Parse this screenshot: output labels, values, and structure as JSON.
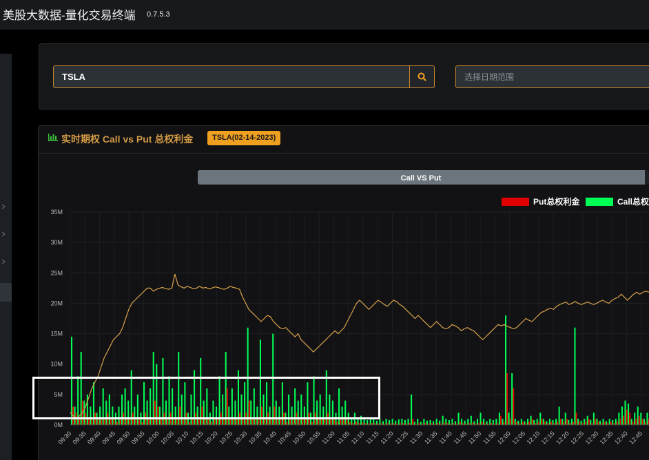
{
  "app": {
    "title": "美股大数据-量化交易终端",
    "version": "0.7.5.3"
  },
  "search": {
    "ticker_value": "TSLA",
    "date_placeholder": "选择日期范围"
  },
  "card": {
    "title": "实时期权 Call vs Put 总权利金",
    "badge": "TSLA(02-14-2023)"
  },
  "chart_data": {
    "type": "bar",
    "title": "Call VS Put",
    "legend": [
      "Put总权利金",
      "Call总权"
    ],
    "legend_position": "top-right",
    "colors": {
      "put": "#e00000",
      "call": "#00ff55",
      "price_line": "#d8a24a"
    },
    "y_ticks": [
      "0M",
      "5M",
      "10M",
      "15M",
      "20M",
      "25M",
      "30M",
      "35M"
    ],
    "ylim": [
      0,
      35
    ],
    "x_ticks": [
      "09:30",
      "09:35",
      "09:40",
      "09:45",
      "09:50",
      "09:55",
      "10:00",
      "10:05",
      "10:10",
      "10:15",
      "10:20",
      "10:25",
      "10:30",
      "10:35",
      "10:40",
      "10:45",
      "10:50",
      "10:55",
      "11:00",
      "11:05",
      "11:10",
      "11:15",
      "11:20",
      "11:25",
      "11:30",
      "11:35",
      "11:40",
      "11:45",
      "11:50",
      "11:55",
      "12:00",
      "12:05",
      "12:10",
      "12:15",
      "12:20",
      "12:25",
      "12:30",
      "12:35",
      "12:40",
      "12:45"
    ],
    "call_values": [
      14.5,
      3,
      8,
      12,
      4,
      5,
      3,
      7,
      2,
      3,
      6,
      4,
      5,
      3,
      2,
      3,
      5,
      6,
      4,
      9,
      3,
      5,
      2,
      7,
      4,
      6,
      12,
      10,
      3,
      11,
      4,
      8,
      6,
      3,
      12,
      5,
      7,
      2,
      5,
      9,
      3,
      11,
      4,
      6,
      2,
      4,
      3,
      8,
      5,
      12,
      3,
      6,
      4,
      9,
      5,
      7,
      16,
      4,
      6,
      3,
      14,
      5,
      7,
      3,
      15,
      4,
      3,
      7,
      2,
      5,
      3,
      6,
      4,
      5,
      3,
      7,
      2,
      8,
      4,
      5,
      3,
      9,
      5,
      4,
      2,
      6,
      3,
      4,
      2,
      1,
      2,
      1,
      1.5,
      1,
      0.8,
      1,
      1,
      0.7,
      1,
      0.6,
      1,
      0.8,
      1,
      0.7,
      0.9,
      1,
      0.8,
      1,
      5,
      0.5,
      1,
      0.5,
      1,
      0.7,
      0.8,
      0.6,
      1,
      0.7,
      1.5,
      1,
      0.8,
      1,
      0.6,
      2,
      1,
      0.7,
      1,
      1.5,
      0.6,
      1,
      2,
      1,
      0.6,
      1,
      0.8,
      1,
      2,
      1,
      18,
      2,
      8.5,
      1,
      0.7,
      1,
      0.6,
      1,
      1.5,
      0.8,
      1,
      2,
      1,
      0.6,
      1,
      0.8,
      1,
      3,
      1,
      2,
      0.8,
      1,
      16,
      1,
      0.7,
      1,
      1.5,
      0.8,
      2,
      1,
      0.7,
      1,
      0.6,
      1,
      0.8,
      1,
      2,
      3,
      4,
      3.5,
      1,
      2,
      3,
      2,
      1,
      2
    ],
    "put_values": [
      3,
      2,
      1,
      4,
      2,
      1,
      1,
      2,
      1,
      1,
      1,
      2,
      1,
      1,
      0.5,
      1,
      2,
      1,
      1,
      2,
      1,
      1,
      0.5,
      2,
      1,
      1,
      4,
      3,
      1,
      2,
      1,
      2,
      1,
      1,
      3,
      1,
      2,
      0.5,
      1,
      2,
      1,
      3,
      1,
      1,
      0.5,
      1,
      1,
      2,
      1,
      6,
      1,
      1,
      1,
      2,
      1,
      2,
      4,
      1,
      1,
      1,
      3,
      1,
      2,
      1,
      3,
      1,
      1,
      2,
      0.5,
      1,
      1,
      2,
      1,
      1,
      1,
      2,
      0.5,
      2,
      1,
      1,
      1,
      2,
      1,
      1,
      0.5,
      1,
      1,
      1,
      0.5,
      0.3,
      0.5,
      0.3,
      0.4,
      0.3,
      0.2,
      0.3,
      0.3,
      0.2,
      0.3,
      0.2,
      0.3,
      0.2,
      0.3,
      0.2,
      0.3,
      0.3,
      0.2,
      0.3,
      1,
      0.2,
      0.3,
      0.2,
      0.3,
      0.2,
      0.3,
      0.2,
      0.3,
      0.2,
      0.4,
      0.3,
      0.2,
      0.3,
      0.2,
      0.5,
      0.3,
      0.2,
      0.3,
      0.4,
      0.2,
      0.3,
      0.5,
      0.3,
      0.2,
      0.3,
      0.2,
      0.3,
      1.5,
      0.5,
      8.5,
      1,
      6,
      0.5,
      0.3,
      0.5,
      0.3,
      0.5,
      1,
      0.3,
      0.5,
      1,
      0.5,
      0.3,
      0.5,
      0.3,
      0.5,
      1,
      0.5,
      1,
      0.3,
      0.5,
      2,
      0.5,
      0.3,
      0.5,
      1,
      0.3,
      1,
      0.5,
      0.3,
      0.5,
      0.3,
      0.5,
      0.3,
      0.5,
      1,
      1.5,
      2.5,
      2,
      0.5,
      1,
      1.5,
      1,
      0.5,
      1
    ],
    "price_line": [
      2,
      1.5,
      1,
      1.5,
      2,
      3,
      4.5,
      6,
      7,
      8,
      9.5,
      11,
      12,
      13,
      14,
      14.5,
      15,
      16,
      17.5,
      19,
      20,
      20.5,
      21,
      21.5,
      22,
      22.5,
      22.5,
      22,
      22.3,
      22.5,
      22.6,
      22.4,
      22.3,
      22.5,
      24.8,
      23,
      22.7,
      22.5,
      22.8,
      22.6,
      22.4,
      22.5,
      22.8,
      22.5,
      22.6,
      22.4,
      22.5,
      22.7,
      22.6,
      22.4,
      22.3,
      22.5,
      22.8,
      22.6,
      22.5,
      22.3,
      21,
      20,
      19,
      18.5,
      18,
      17.5,
      17,
      17.5,
      18,
      17.8,
      17,
      16.5,
      16,
      15.8,
      16,
      15.5,
      15,
      14.5,
      15,
      14,
      13.5,
      13,
      12.5,
      12,
      12.5,
      13,
      13.5,
      14,
      14.5,
      15,
      15.5,
      15,
      15.5,
      16,
      17,
      18,
      19,
      20,
      20.5,
      20,
      19.5,
      19,
      19.5,
      20,
      20.5,
      20.2,
      19.8,
      19.5,
      20,
      20.5,
      20.3,
      19.8,
      19.5,
      19,
      18.5,
      18,
      17.5,
      18,
      17.5,
      17,
      16.5,
      16,
      16.5,
      17,
      16.5,
      16,
      15.8,
      16,
      16.5,
      16.3,
      16,
      15.5,
      15.8,
      16,
      15.7,
      15.5,
      15,
      14.5,
      14,
      14.5,
      15,
      15.5,
      16,
      16.5,
      16.3,
      16.5,
      16.2,
      16,
      15.8,
      16,
      16.5,
      17,
      17.5,
      17.2,
      17,
      17.5,
      18,
      18.5,
      18.7,
      19,
      19.2,
      19,
      19.5,
      19.8,
      20,
      20.2,
      19.8,
      20,
      20.3,
      20,
      19.8,
      20,
      20.2,
      20,
      19.8,
      20,
      20.3,
      20.5,
      20.2,
      20,
      20.5,
      20.8,
      21,
      21.5,
      21,
      20.5,
      21,
      21.5,
      21.8,
      21.5,
      21.8,
      22,
      21.8
    ]
  }
}
